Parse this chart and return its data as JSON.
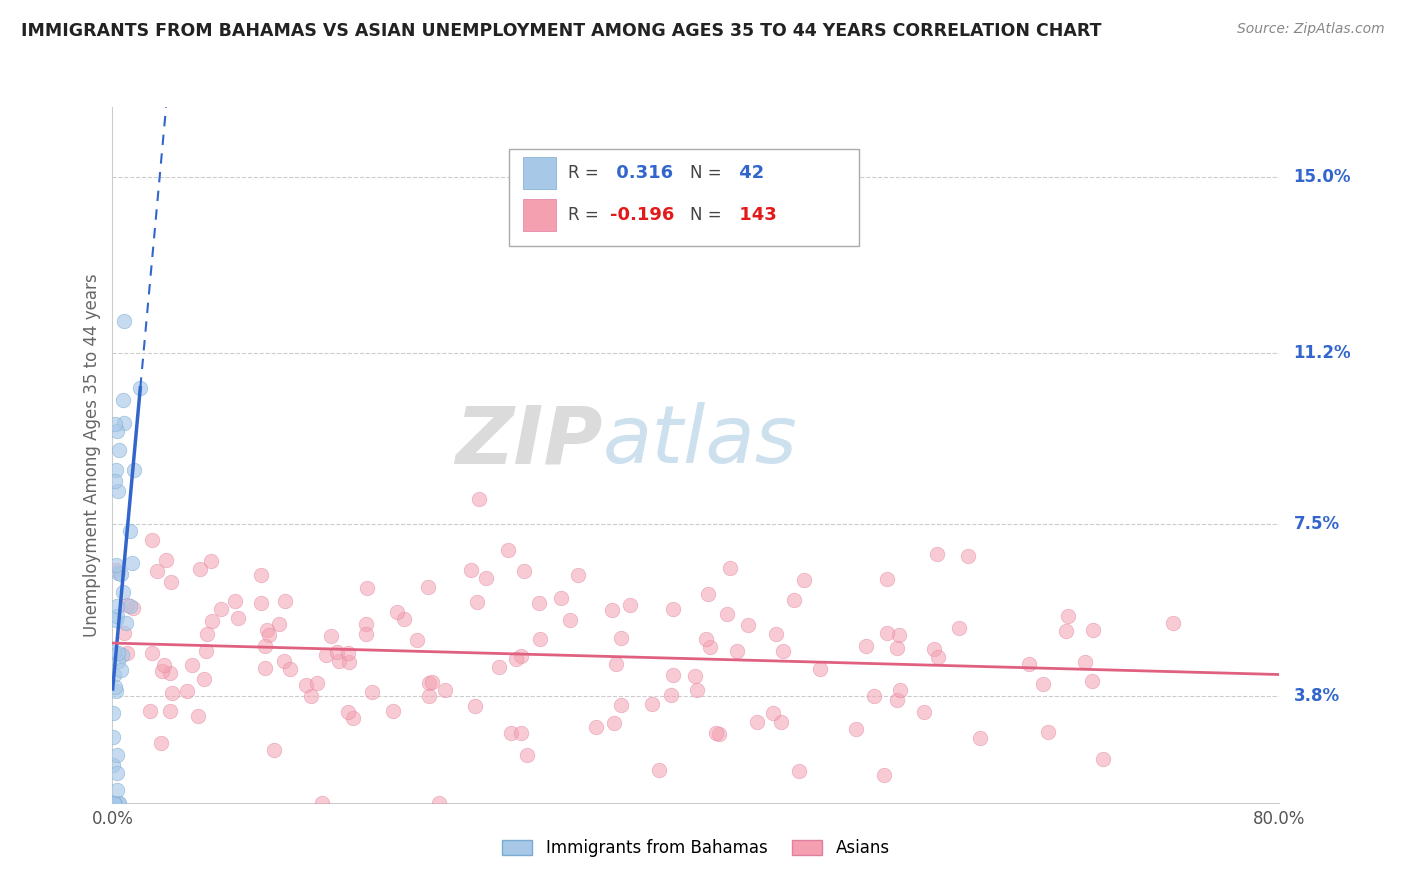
{
  "title": "IMMIGRANTS FROM BAHAMAS VS ASIAN UNEMPLOYMENT AMONG AGES 35 TO 44 YEARS CORRELATION CHART",
  "source": "Source: ZipAtlas.com",
  "ylabel_label": "Unemployment Among Ages 35 to 44 years",
  "yticks": [
    3.8,
    7.5,
    11.2,
    15.0
  ],
  "xlim": [
    0.0,
    80.0
  ],
  "ylim": [
    1.5,
    16.5
  ],
  "blue_R": 0.316,
  "blue_N": 42,
  "pink_R": -0.196,
  "pink_N": 143,
  "blue_color": "#a8c8e8",
  "blue_line_color": "#3366cc",
  "pink_color": "#f4a0b0",
  "pink_line_color": "#e06080",
  "legend_label_blue": "Immigrants from Bahamas",
  "legend_label_pink": "Asians",
  "background_color": "#ffffff",
  "grid_color": "#cccccc"
}
